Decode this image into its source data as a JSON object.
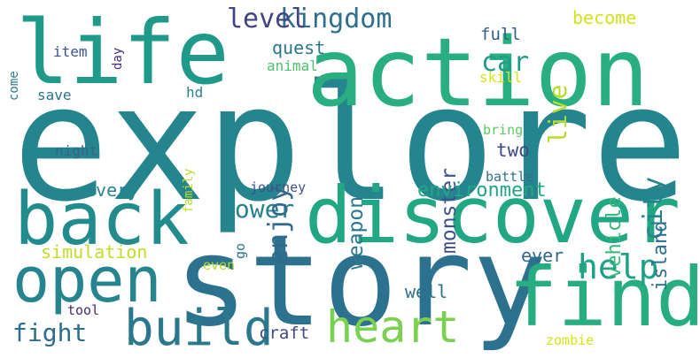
{
  "words": {
    "explore": {
      "text": "explore",
      "color": "#25858e"
    },
    "story": {
      "text": "story",
      "color": "#2c728e"
    },
    "action": {
      "text": "action",
      "color": "#28ae80"
    },
    "life": {
      "text": "life",
      "color": "#1f9a8a"
    },
    "back": {
      "text": "back",
      "color": "#228b8d"
    },
    "discover": {
      "text": "discover",
      "color": "#22a785"
    },
    "find": {
      "text": "find",
      "color": "#27ad81"
    },
    "open": {
      "text": "open",
      "color": "#25848e"
    },
    "build": {
      "text": "build",
      "color": "#2a788e"
    },
    "heart": {
      "text": "heart",
      "color": "#7ad151"
    },
    "help": {
      "text": "help",
      "color": "#1fa188"
    },
    "kingdom": {
      "text": "kingdom",
      "color": "#2e6e8e"
    },
    "level": {
      "text": "level",
      "color": "#414487"
    },
    "car": {
      "text": "car",
      "color": "#1e9c89"
    },
    "power": {
      "text": "power",
      "color": "#26828e"
    },
    "fight": {
      "text": "fight",
      "color": "#2f6c8e"
    },
    "enjoy": {
      "text": "enjoy",
      "color": "#31688e"
    },
    "city": {
      "text": "city",
      "color": "#26828e"
    },
    "live": {
      "text": "live",
      "color": "#b5de2b"
    },
    "monster": {
      "text": "monster",
      "color": "#3b528b"
    },
    "weapon": {
      "text": "weapon",
      "color": "#2a788e"
    },
    "vehicle": {
      "text": "vehicle",
      "color": "#35b779"
    },
    "island": {
      "text": "island",
      "color": "#2d708e"
    },
    "environment": {
      "text": "environment",
      "color": "#22a884"
    },
    "every": {
      "text": "every",
      "color": "#25858e"
    },
    "quest": {
      "text": "quest",
      "color": "#2a788e"
    },
    "become": {
      "text": "become",
      "color": "#d2e21b"
    },
    "full": {
      "text": "full",
      "color": "#355f8d"
    },
    "two": {
      "text": "two",
      "color": "#3e4989"
    },
    "simulation": {
      "text": "simulation",
      "color": "#bddf26"
    },
    "ever": {
      "text": "ever",
      "color": "#31688e"
    },
    "well": {
      "text": "well",
      "color": "#2d708e"
    },
    "craft": {
      "text": "craft",
      "color": "#3e4989"
    },
    "item": {
      "text": "item",
      "color": "#3b528b"
    },
    "night": {
      "text": "night",
      "color": "#33638d"
    },
    "journey": {
      "text": "journey",
      "color": "#3b528b"
    },
    "animal": {
      "text": "animal",
      "color": "#4ac16d"
    },
    "bring": {
      "text": "bring",
      "color": "#5ec962"
    },
    "battle": {
      "text": "battle",
      "color": "#2c728e"
    },
    "skill": {
      "text": "skill",
      "color": "#d8e219"
    },
    "save": {
      "text": "save",
      "color": "#2c728e"
    },
    "hd": {
      "text": "hd",
      "color": "#26828e"
    },
    "tool": {
      "text": "tool",
      "color": "#482878"
    },
    "zombie": {
      "text": "zombie",
      "color": "#d8e219"
    },
    "even": {
      "text": "even",
      "color": "#b5de2b"
    },
    "come": {
      "text": "come",
      "color": "#2a788e"
    },
    "day": {
      "text": "day",
      "color": "#472d7b"
    },
    "family": {
      "text": "family",
      "color": "#bddf26"
    },
    "go": {
      "text": "go",
      "color": "#2c728e"
    }
  },
  "rotated": [
    "enjoy",
    "city",
    "live",
    "monster",
    "weapon",
    "vehicle",
    "island",
    "come",
    "day",
    "family",
    "go"
  ]
}
